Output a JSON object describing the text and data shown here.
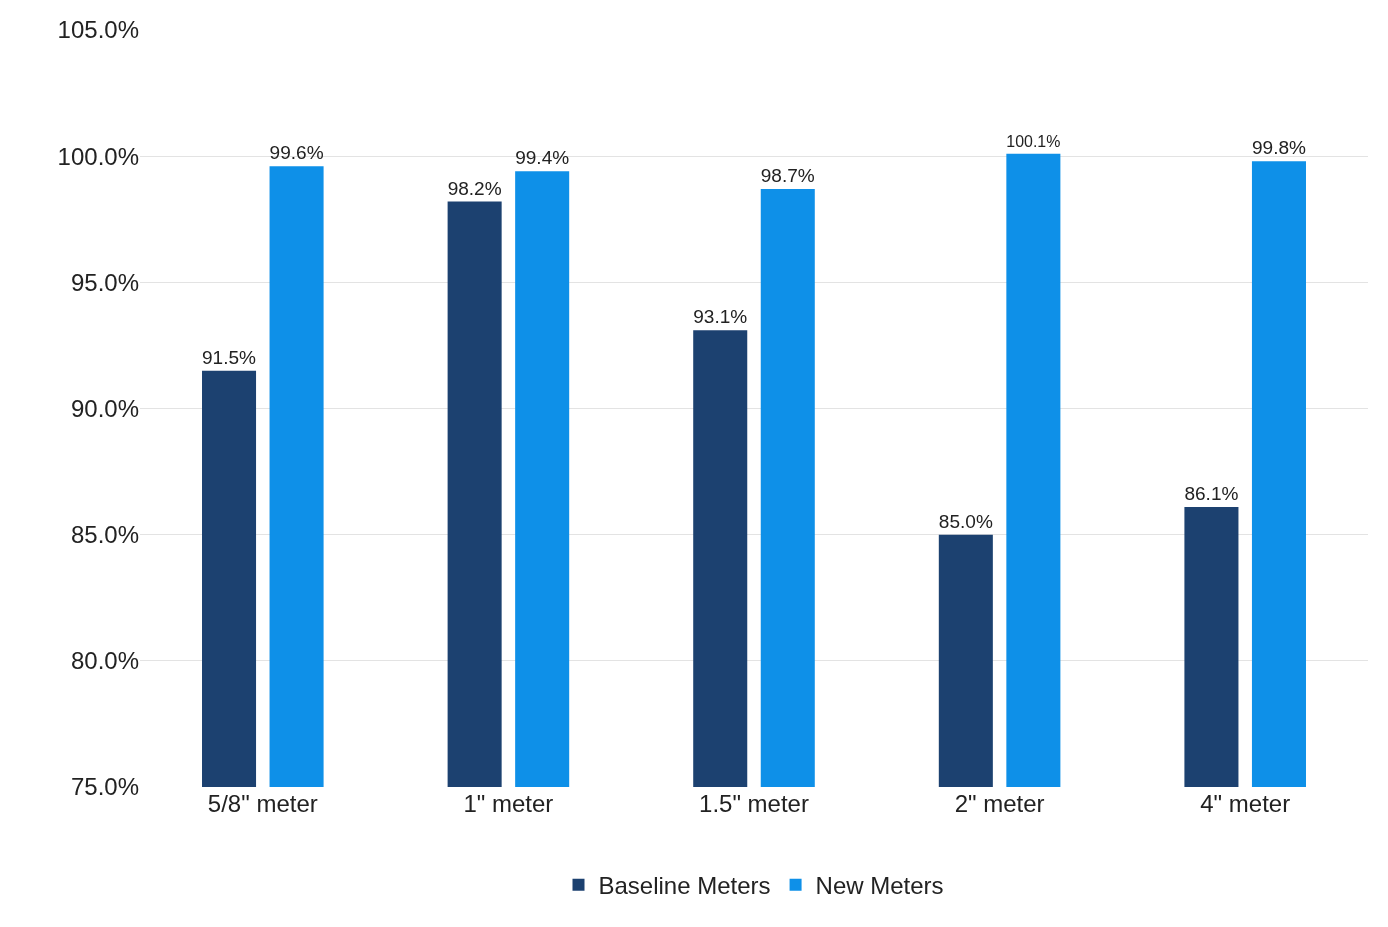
{
  "chart_data": {
    "type": "bar",
    "categories": [
      "5/8\" meter",
      "1\" meter",
      "1.5\" meter",
      "2\" meter",
      "4\" meter"
    ],
    "series": [
      {
        "name": "Baseline Meters",
        "color": "#1c4170",
        "values": [
          91.5,
          98.2,
          93.1,
          85.0,
          86.1
        ],
        "value_labels": [
          "91.5%",
          "98.2%",
          "93.1%",
          "85.0%",
          "86.1%"
        ]
      },
      {
        "name": "New Meters",
        "color": "#0e90e8",
        "values": [
          99.6,
          99.4,
          98.7,
          100.1,
          99.8
        ],
        "value_labels": [
          "99.6%",
          "99.4%",
          "98.7%",
          "100.1%",
          "99.8%"
        ]
      }
    ],
    "ylim": [
      75,
      105
    ],
    "yticks": [
      {
        "value": 75,
        "label": "75.0%"
      },
      {
        "value": 80,
        "label": "80.0%"
      },
      {
        "value": 85,
        "label": "85.0%"
      },
      {
        "value": 90,
        "label": "90.0%"
      },
      {
        "value": 95,
        "label": "95.0%"
      },
      {
        "value": 100,
        "label": "100.0%"
      },
      {
        "value": 105,
        "label": "105.0%"
      }
    ],
    "grid": "y",
    "legend": "bottom"
  }
}
